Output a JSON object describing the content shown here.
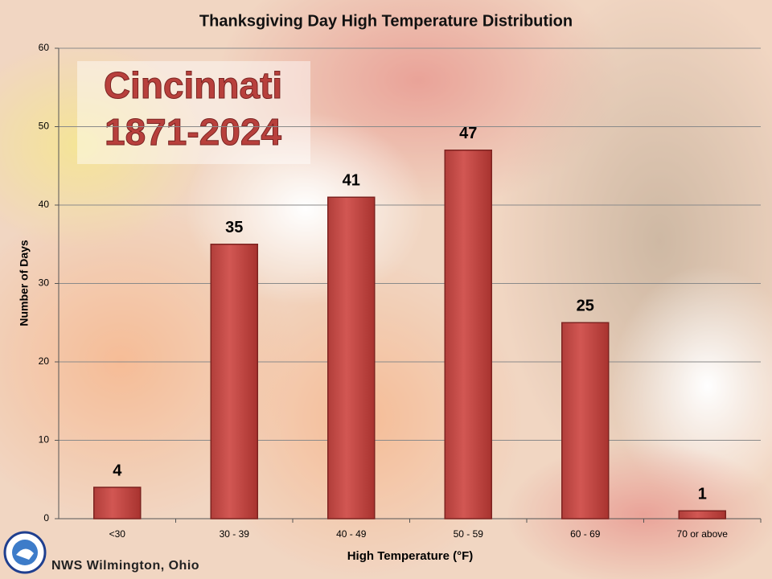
{
  "chart_data": {
    "type": "bar",
    "title": "Thanksgiving Day High Temperature Distribution",
    "annotations": [
      "Cincinnati",
      "1871-2024"
    ],
    "source": "NWS Wilmington, Ohio",
    "x_label": "High Temperature (°F)",
    "y_label": "Number of Days",
    "categories": [
      "<30",
      "30 - 39",
      "40 - 49",
      "50 - 59",
      "60 - 69",
      "70 or above"
    ],
    "values": [
      4,
      35,
      41,
      47,
      25,
      1
    ],
    "color": "#cd4f4b",
    "ylim": [
      0,
      60
    ],
    "yticks": [
      0,
      10,
      20,
      30,
      40,
      50,
      60
    ],
    "grid": true
  }
}
